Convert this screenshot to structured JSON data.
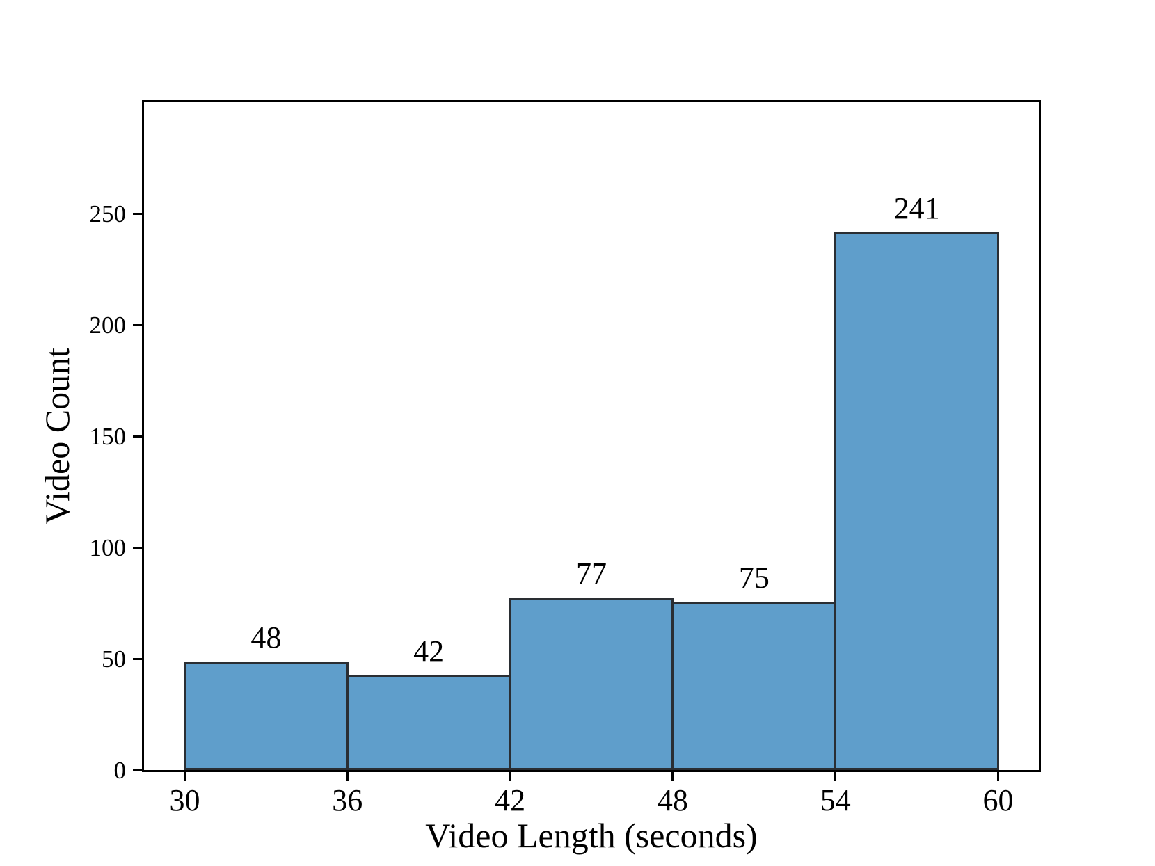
{
  "figure": {
    "background_color": "#ffffff",
    "frame_color": "#000000"
  },
  "chart_data": {
    "type": "bar",
    "subtype": "histogram",
    "title": "",
    "xlabel": "Video Length (seconds)",
    "ylabel": "Video Count",
    "bin_edges": [
      30,
      36,
      42,
      48,
      54,
      60
    ],
    "values": [
      48,
      42,
      77,
      75,
      241
    ],
    "bar_labels": [
      "48",
      "42",
      "77",
      "75",
      "241"
    ],
    "x_ticks": [
      30,
      36,
      42,
      48,
      54,
      60
    ],
    "x_tick_labels": [
      "30",
      "36",
      "42",
      "48",
      "54",
      "60"
    ],
    "y_ticks": [
      0,
      50,
      100,
      150,
      200,
      250
    ],
    "y_tick_labels": [
      "0",
      "50",
      "100",
      "150",
      "200",
      "250"
    ],
    "xlim": [
      28.5,
      61.5
    ],
    "ylim": [
      0,
      300
    ],
    "grid": false,
    "legend": null,
    "bar_fill_color": "#5f9ecb",
    "bar_edge_color": "#2a2e33",
    "axis_color": "#000000",
    "text_color": "#000000"
  }
}
